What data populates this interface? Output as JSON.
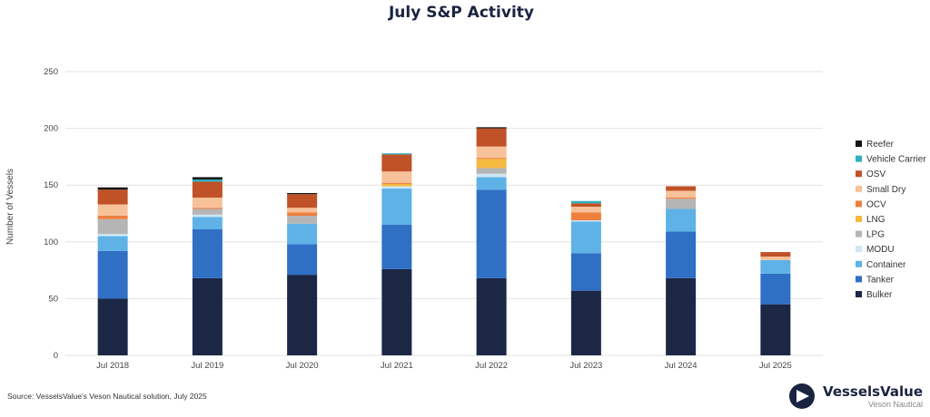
{
  "chart_data": {
    "type": "bar",
    "stacked": true,
    "title": "July S&P Activity",
    "ylabel": "Number of Vessels",
    "xlabel": "",
    "ylim": [
      0,
      250
    ],
    "yticks": [
      0,
      50,
      100,
      150,
      200,
      250
    ],
    "grid": true,
    "legend_position": "right",
    "categories": [
      "Jul 2018",
      "Jul 2019",
      "Jul 2020",
      "Jul 2021",
      "Jul 2022",
      "Jul 2023",
      "Jul 2024",
      "Jul 2025"
    ],
    "series": [
      {
        "name": "Bulker",
        "color": "#1b2745",
        "values": [
          50,
          68,
          71,
          76,
          68,
          57,
          68,
          45
        ]
      },
      {
        "name": "Tanker",
        "color": "#2f6fc4",
        "values": [
          42,
          43,
          27,
          39,
          78,
          33,
          41,
          27
        ]
      },
      {
        "name": "Container",
        "color": "#5eb2e6",
        "values": [
          13,
          11,
          18,
          32,
          11,
          28,
          20,
          12
        ]
      },
      {
        "name": "MODU",
        "color": "#cfe6f4",
        "values": [
          2,
          2,
          0,
          2,
          3,
          1,
          0,
          0
        ]
      },
      {
        "name": "LPG",
        "color": "#b5b5b5",
        "values": [
          13,
          5,
          7,
          0,
          5,
          0,
          9,
          0
        ]
      },
      {
        "name": "LNG",
        "color": "#f5b940",
        "values": [
          0,
          0,
          0,
          2,
          8,
          0,
          0,
          0
        ]
      },
      {
        "name": "OCV",
        "color": "#ee7f3d",
        "values": [
          3,
          1,
          3,
          1,
          1,
          7,
          1,
          0
        ]
      },
      {
        "name": "Small Dry",
        "color": "#f7c19a",
        "values": [
          10,
          9,
          4,
          10,
          10,
          5,
          6,
          3
        ]
      },
      {
        "name": "OSV",
        "color": "#c05228",
        "values": [
          13,
          14,
          12,
          15,
          16,
          3,
          4,
          4
        ]
      },
      {
        "name": "Vehicle Carrier",
        "color": "#2fb0bd",
        "values": [
          0,
          2,
          0,
          1,
          0,
          2,
          0,
          0
        ]
      },
      {
        "name": "Reefer",
        "color": "#141414",
        "values": [
          2,
          2,
          1,
          0,
          1,
          0,
          0,
          0
        ]
      }
    ]
  },
  "footer": {
    "source": "Source: VesselsValue's Veson Nautical solution, July 2025"
  },
  "brand": {
    "name": "VesselsValue",
    "subtitle": "Veson Nautical"
  }
}
